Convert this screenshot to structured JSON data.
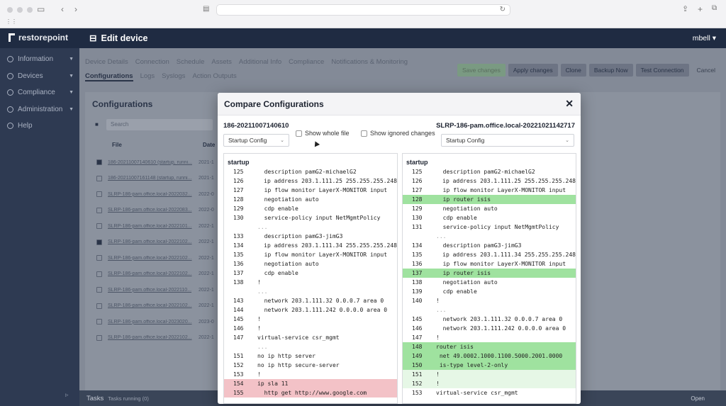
{
  "app": {
    "brand": "restorepoint",
    "page_title": "Edit device",
    "user": "mbell"
  },
  "sidebar": {
    "items": [
      {
        "label": "Information",
        "icon": "info-icon"
      },
      {
        "label": "Devices",
        "icon": "devices-icon"
      },
      {
        "label": "Compliance",
        "icon": "compliance-icon"
      },
      {
        "label": "Administration",
        "icon": "admin-icon"
      },
      {
        "label": "Help",
        "icon": "help-icon"
      }
    ]
  },
  "tabs_row1": [
    "Device Details",
    "Connection",
    "Schedule",
    "Assets",
    "Additional Info",
    "Compliance",
    "Notifications & Monitoring"
  ],
  "tabs_row2": [
    "Configurations",
    "Logs",
    "Syslogs",
    "Action Outputs"
  ],
  "toolbar": {
    "save": "Save changes",
    "apply": "Apply changes",
    "clone": "Clone",
    "backup": "Backup Now",
    "test": "Test Connection",
    "cancel": "Cancel"
  },
  "configs": {
    "title": "Configurations",
    "search_placeholder": "Search",
    "col_file": "File",
    "col_date": "Date",
    "rows": [
      {
        "file": "186-20211007140610 (startup, runni...",
        "date": "2021-1",
        "checked": true
      },
      {
        "file": "186-20211007161148 (startup, runni...",
        "date": "2021-1",
        "checked": false
      },
      {
        "file": "SLRP-186-pam.office.local-2022032...",
        "date": "2022-0",
        "checked": false
      },
      {
        "file": "SLRP-186-pam.office.local-2022083...",
        "date": "2022-0",
        "checked": false
      },
      {
        "file": "SLRP-186-pam.office.local-2022101...",
        "date": "2022-1",
        "checked": false
      },
      {
        "file": "SLRP-186-pam.office.local-2022102...",
        "date": "2022-1",
        "checked": true
      },
      {
        "file": "SLRP-186-pam.office.local-2022102...",
        "date": "2022-1",
        "checked": false
      },
      {
        "file": "SLRP-186-pam.office.local-2022102...",
        "date": "2022-1",
        "checked": false
      },
      {
        "file": "SLRP-186-pam.office.local-2022110...",
        "date": "2022-1",
        "checked": false
      },
      {
        "file": "SLRP-186-pam.office.local-2022102...",
        "date": "2022-1",
        "checked": false
      },
      {
        "file": "SLRP-186-pam.office.local-2023020...",
        "date": "2023-0",
        "checked": false
      },
      {
        "file": "SLRP-186-pam.office.local-2022102...",
        "date": "2022-1",
        "checked": false
      }
    ]
  },
  "tasks": {
    "label": "Tasks",
    "sub": "Tasks running (0)",
    "open": "Open"
  },
  "modal": {
    "title": "Compare Configurations",
    "left_name": "186-20211007140610",
    "right_name": "SLRP-186-pam.office.local-20221021142717",
    "left_select": "Startup Config",
    "right_select": "Startup Config",
    "show_whole_file": "Show whole file",
    "show_ignored": "Show ignored changes",
    "left_pane": {
      "header": "startup",
      "lines": [
        {
          "n": "125",
          "t": "  description pamG2-michaelG2",
          "s": ""
        },
        {
          "n": "126",
          "t": "  ip address 203.1.111.25 255.255.255.248",
          "s": ""
        },
        {
          "n": "127",
          "t": "  ip flow monitor LayerX-MONITOR input",
          "s": ""
        },
        {
          "n": "128",
          "t": "  negotiation auto",
          "s": ""
        },
        {
          "n": "129",
          "t": "  cdp enable",
          "s": ""
        },
        {
          "n": "130",
          "t": "  service-policy input NetMgmtPolicy",
          "s": ""
        },
        {
          "n": "",
          "t": "...",
          "s": "gap"
        },
        {
          "n": "133",
          "t": "  description pamG3-jimG3",
          "s": ""
        },
        {
          "n": "134",
          "t": "  ip address 203.1.111.34 255.255.255.248",
          "s": ""
        },
        {
          "n": "135",
          "t": "  ip flow monitor LayerX-MONITOR input",
          "s": ""
        },
        {
          "n": "136",
          "t": "  negotiation auto",
          "s": ""
        },
        {
          "n": "137",
          "t": "  cdp enable",
          "s": ""
        },
        {
          "n": "138",
          "t": "!",
          "s": ""
        },
        {
          "n": "",
          "t": "...",
          "s": "gap"
        },
        {
          "n": "143",
          "t": "  network 203.1.111.32 0.0.0.7 area 0",
          "s": ""
        },
        {
          "n": "144",
          "t": "  network 203.1.111.242 0.0.0.0 area 0",
          "s": ""
        },
        {
          "n": "145",
          "t": "!",
          "s": ""
        },
        {
          "n": "146",
          "t": "!",
          "s": ""
        },
        {
          "n": "147",
          "t": "virtual-service csr_mgmt",
          "s": ""
        },
        {
          "n": "",
          "t": "...",
          "s": "gap"
        },
        {
          "n": "151",
          "t": "no ip http server",
          "s": ""
        },
        {
          "n": "152",
          "t": "no ip http secure-server",
          "s": ""
        },
        {
          "n": "153",
          "t": "!",
          "s": ""
        },
        {
          "n": "154",
          "t": "ip sla 11",
          "s": "del"
        },
        {
          "n": "155",
          "t": "  http get http://www.google.com",
          "s": "del"
        }
      ]
    },
    "right_pane": {
      "header": "startup",
      "lines": [
        {
          "n": "125",
          "t": "  description pamG2-michaelG2",
          "s": ""
        },
        {
          "n": "126",
          "t": "  ip address 203.1.111.25 255.255.255.248",
          "s": ""
        },
        {
          "n": "127",
          "t": "  ip flow monitor LayerX-MONITOR input",
          "s": ""
        },
        {
          "n": "128",
          "t": "  ip router isis",
          "s": "add"
        },
        {
          "n": "129",
          "t": "  negotiation auto",
          "s": ""
        },
        {
          "n": "130",
          "t": "  cdp enable",
          "s": ""
        },
        {
          "n": "131",
          "t": "  service-policy input NetMgmtPolicy",
          "s": ""
        },
        {
          "n": "",
          "t": "...",
          "s": "gap"
        },
        {
          "n": "134",
          "t": "  description pamG3-jimG3",
          "s": ""
        },
        {
          "n": "135",
          "t": "  ip address 203.1.111.34 255.255.255.248",
          "s": ""
        },
        {
          "n": "136",
          "t": "  ip flow monitor LayerX-MONITOR input",
          "s": ""
        },
        {
          "n": "137",
          "t": "  ip router isis",
          "s": "add"
        },
        {
          "n": "138",
          "t": "  negotiation auto",
          "s": ""
        },
        {
          "n": "139",
          "t": "  cdp enable",
          "s": ""
        },
        {
          "n": "140",
          "t": "!",
          "s": ""
        },
        {
          "n": "",
          "t": "...",
          "s": "gap"
        },
        {
          "n": "145",
          "t": "  network 203.1.111.32 0.0.0.7 area 0",
          "s": ""
        },
        {
          "n": "146",
          "t": "  network 203.1.111.242 0.0.0.0 area 0",
          "s": ""
        },
        {
          "n": "147",
          "t": "!",
          "s": ""
        },
        {
          "n": "148",
          "t": "router isis",
          "s": "add"
        },
        {
          "n": "149",
          "t": " net 49.0002.1000.1100.5000.2001.0000",
          "s": "add"
        },
        {
          "n": "150",
          "t": " is-type level-2-only",
          "s": "add"
        },
        {
          "n": "151",
          "t": "!",
          "s": "add2"
        },
        {
          "n": "152",
          "t": "!",
          "s": "add2"
        },
        {
          "n": "153",
          "t": "virtual-service csr_mgmt",
          "s": ""
        }
      ]
    }
  }
}
